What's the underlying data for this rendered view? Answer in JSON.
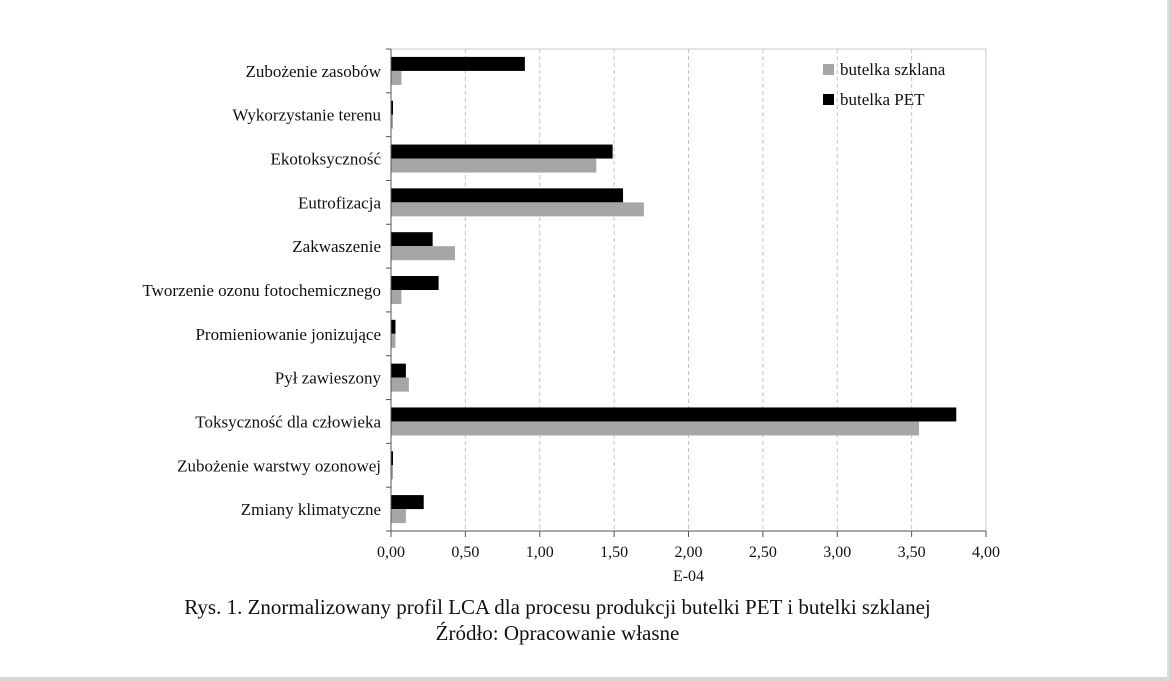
{
  "chart_data": {
    "type": "bar",
    "orientation": "horizontal",
    "categories": [
      "Zubożenie zasobów",
      "Wykorzystanie terenu",
      "Ekotoksyczność",
      "Eutrofizacja",
      "Zakwaszenie",
      "Tworzenie ozonu fotochemicznego",
      "Promieniowanie jonizujące",
      "Pył zawieszony",
      "Toksyczność dla człowieka",
      "Zubożenie warstwy ozonowej",
      "Zmiany klimatyczne"
    ],
    "series": [
      {
        "name": "butelka szklana",
        "color": "#a6a6a6",
        "values": [
          0.07,
          0.01,
          1.38,
          1.7,
          0.43,
          0.07,
          0.03,
          0.12,
          3.55,
          0.01,
          0.1
        ]
      },
      {
        "name": "butelka PET",
        "color": "#000000",
        "values": [
          0.9,
          0.01,
          1.49,
          1.56,
          0.28,
          0.32,
          0.03,
          0.1,
          3.8,
          0.01,
          0.22
        ]
      }
    ],
    "xlim": [
      0,
      4
    ],
    "xticks": [
      0,
      0.5,
      1,
      1.5,
      2,
      2.5,
      3,
      3.5,
      4
    ],
    "xtick_labels": [
      "0,00",
      "0,50",
      "1,00",
      "1,50",
      "2,00",
      "2,50",
      "3,00",
      "3,50",
      "4,00"
    ],
    "xlabel": "E-04",
    "grid": "vertical dashed",
    "legend_position": "top-right",
    "legend_order": [
      0,
      1
    ]
  },
  "caption": {
    "line1": "Rys. 1. Znormalizowany profil LCA dla procesu produkcji butelki PET i butelki szklanej",
    "line2": "Źródło: Opracowanie własne"
  }
}
